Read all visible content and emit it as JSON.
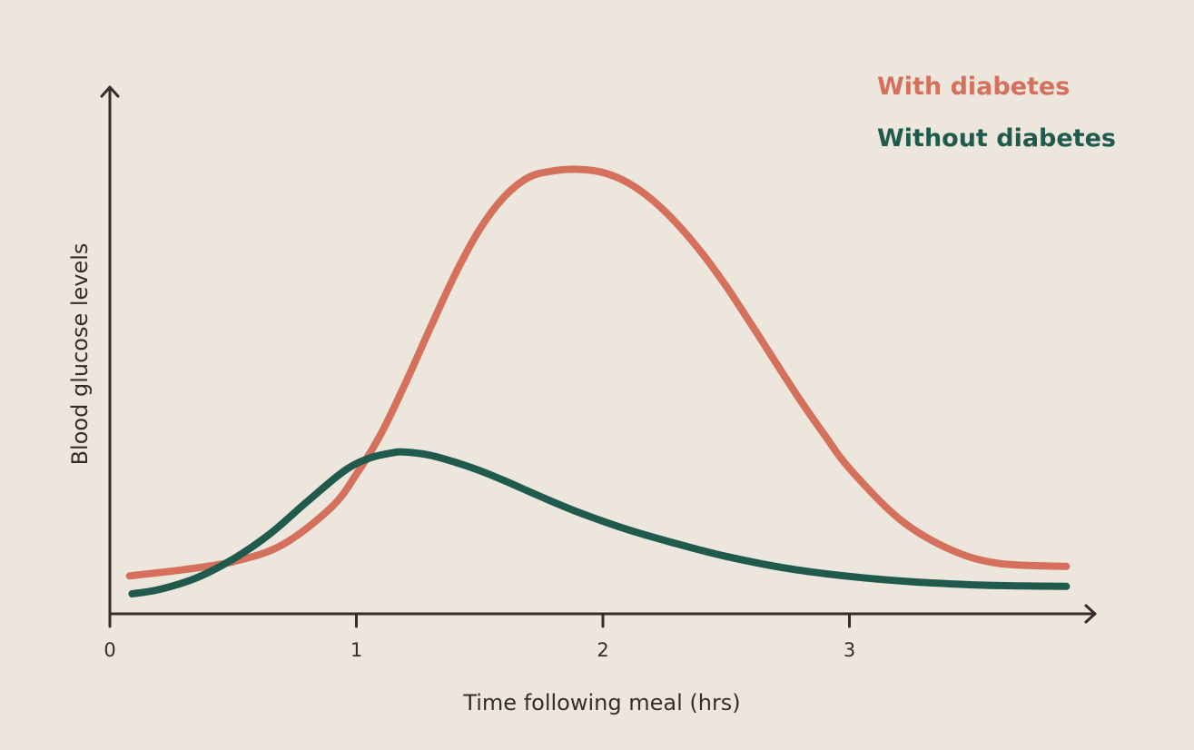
{
  "chart_data": {
    "type": "line",
    "title": "",
    "xlabel": "Time following meal (hrs)",
    "ylabel": "Blood glucose levels",
    "xlim": [
      0,
      4
    ],
    "ylim": [
      0,
      100
    ],
    "x_ticks": [
      0,
      1,
      2,
      3
    ],
    "x_tick_labels": [
      "0",
      "1",
      "2",
      "3"
    ],
    "grid": false,
    "legend_position": "top-right",
    "series": [
      {
        "name": "With diabetes",
        "color": "#d4705c",
        "x": [
          0.08,
          0.3,
          0.5,
          0.7,
          0.9,
          1.0,
          1.1,
          1.2,
          1.3,
          1.4,
          1.5,
          1.6,
          1.7,
          1.8,
          1.9,
          2.0,
          2.1,
          2.2,
          2.3,
          2.4,
          2.5,
          2.6,
          2.7,
          2.8,
          2.9,
          3.0,
          3.2,
          3.4,
          3.6,
          3.88
        ],
        "y": [
          7.2,
          8.4,
          9.9,
          13.1,
          20.3,
          26.5,
          34.2,
          43.9,
          54.3,
          64.4,
          73.0,
          79.2,
          82.9,
          84.1,
          84.4,
          83.8,
          81.9,
          78.6,
          74.1,
          68.6,
          62.2,
          55.1,
          47.8,
          40.6,
          33.9,
          27.6,
          18.1,
          12.4,
          9.6,
          9.0
        ]
      },
      {
        "name": "Without diabetes",
        "color": "#1f5a4c",
        "x": [
          0.09,
          0.2,
          0.35,
          0.5,
          0.65,
          0.8,
          0.95,
          1.05,
          1.15,
          1.2,
          1.3,
          1.4,
          1.5,
          1.6,
          1.75,
          1.9,
          2.1,
          2.3,
          2.5,
          2.75,
          3.0,
          3.25,
          3.5,
          3.7,
          3.88
        ],
        "y": [
          3.8,
          4.6,
          6.8,
          10.4,
          15.2,
          21.3,
          27.1,
          29.5,
          30.6,
          30.7,
          30.1,
          28.8,
          27.2,
          25.3,
          22.2,
          19.3,
          16.0,
          13.3,
          10.9,
          8.6,
          7.1,
          6.1,
          5.5,
          5.3,
          5.2
        ]
      }
    ]
  }
}
